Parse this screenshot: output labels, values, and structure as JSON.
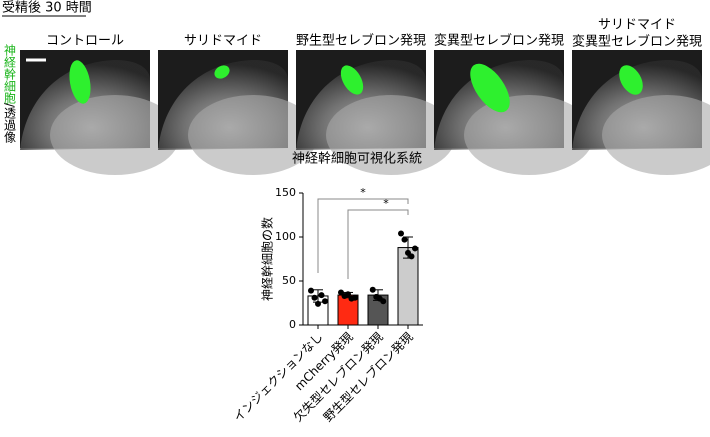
{
  "header": {
    "title": "受精後 30 時間"
  },
  "side_label": {
    "green": "神経幹細胞",
    "black": "/透過像"
  },
  "panels": [
    {
      "label": "コントロール"
    },
    {
      "label": "サリドマイド"
    },
    {
      "label": "野生型セレブロン発現"
    },
    {
      "label": "変異型セレブロン発現"
    },
    {
      "label": [
        "サリドマイド",
        "変異型セレブロン発現"
      ]
    }
  ],
  "caption": "神経幹細胞可視化系統",
  "chart_data": {
    "type": "bar",
    "ylabel": "神経幹細胞の数",
    "categories": [
      "インジェクションなし",
      "mCherry発現",
      "欠失型セレブロン発現",
      "野生型セレブロン発現"
    ],
    "values": [
      33,
      34,
      34,
      88
    ],
    "errors": [
      7,
      3,
      6,
      12
    ],
    "points": [
      [
        39,
        31,
        24,
        34,
        27
      ],
      [
        37,
        33,
        35,
        30,
        31
      ],
      [
        40,
        32,
        30,
        27
      ],
      [
        104,
        97,
        82,
        78,
        87
      ]
    ],
    "colors": [
      "#ffffff",
      "#ff2a12",
      "#555555",
      "#cccccc"
    ],
    "ylim": [
      0,
      150
    ],
    "yticks": [
      0,
      50,
      100,
      150
    ],
    "annotations": [
      "*",
      "*"
    ]
  }
}
